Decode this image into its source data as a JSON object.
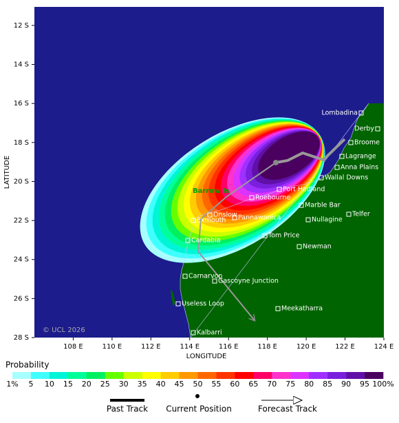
{
  "map": {
    "xlabel": "LONGITUDE",
    "ylabel": "LATITUDE",
    "copyright": "© UCL 2026",
    "xlim": [
      106,
      124
    ],
    "ylim": [
      11.05,
      28
    ],
    "xticks": [
      {
        "value": 108,
        "label": "108 E"
      },
      {
        "value": 110,
        "label": "110 E"
      },
      {
        "value": 112,
        "label": "112 E"
      },
      {
        "value": 114,
        "label": "114 E"
      },
      {
        "value": 116,
        "label": "116 E"
      },
      {
        "value": 118,
        "label": "118 E"
      },
      {
        "value": 120,
        "label": "120 E"
      },
      {
        "value": 122,
        "label": "122 E"
      },
      {
        "value": 124,
        "label": "124 E"
      }
    ],
    "yticks": [
      {
        "value": 12,
        "label": "12 S"
      },
      {
        "value": 14,
        "label": "14 S"
      },
      {
        "value": 16,
        "label": "16 S"
      },
      {
        "value": 18,
        "label": "18 S"
      },
      {
        "value": 20,
        "label": "20 S"
      },
      {
        "value": 22,
        "label": "22 S"
      },
      {
        "value": 24,
        "label": "24 S"
      },
      {
        "value": 26,
        "label": "26 S"
      },
      {
        "value": 28,
        "label": "28 S"
      }
    ],
    "places": [
      "Lombadina",
      "Derby",
      "Broome",
      "Lagrange",
      "Anna Plains",
      "Wallal Downs",
      "Port Hedland",
      "Barrow Is",
      "Roebourne",
      "Marble Bar",
      "Onslow",
      "Pannawonica",
      "Telfer",
      "Exmouth",
      "Nullagine",
      "Tom Price",
      "Cardabia",
      "Newman",
      "Carnarvon",
      "Gascoyne Junction",
      "Useless Loop",
      "Meekatharra",
      "Kalbarri"
    ]
  },
  "legend": {
    "title": "Probability",
    "ticks": [
      {
        "value": 1,
        "label": "1%"
      },
      5,
      10,
      15,
      20,
      25,
      30,
      35,
      40,
      45,
      50,
      55,
      60,
      65,
      70,
      75,
      80,
      85,
      90,
      95,
      {
        "value": 100,
        "label": "100%"
      }
    ],
    "colors": [
      "#a8ffff",
      "#40ffff",
      "#00f5d8",
      "#00ff99",
      "#00f060",
      "#66ff00",
      "#ccff00",
      "#ffff00",
      "#ffcc00",
      "#ff9900",
      "#ff6600",
      "#ff3300",
      "#ff0000",
      "#ff0066",
      "#ff33cc",
      "#dd33ff",
      "#a030ff",
      "#7a1fdd",
      "#6010a8",
      "#4a005e"
    ],
    "items": [
      "Past Track",
      "Current Position",
      "Forecast Track"
    ]
  }
}
